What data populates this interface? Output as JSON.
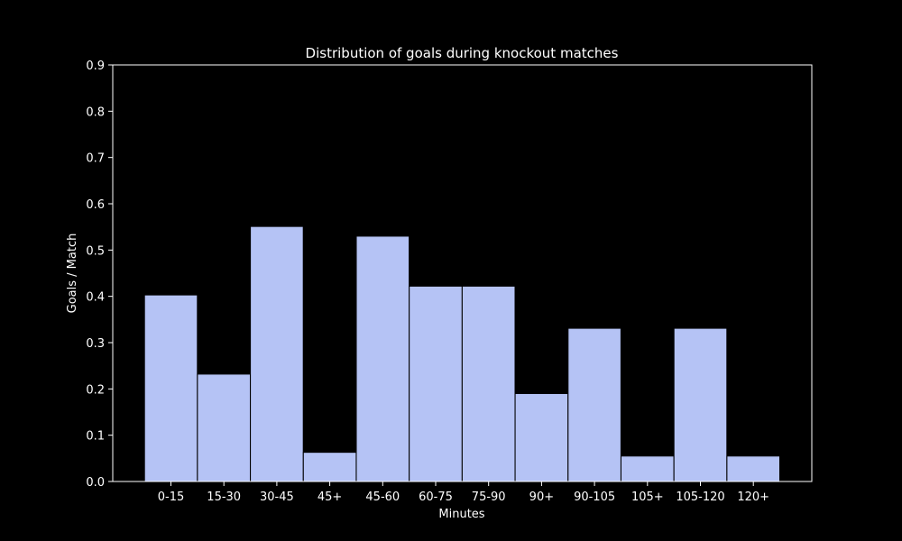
{
  "chart_data": {
    "type": "bar",
    "title": "Distribution of goals during knockout matches",
    "xlabel": "Minutes",
    "ylabel": "Goals / Match",
    "categories": [
      "0-15",
      "15-30",
      "30-45",
      "45+",
      "45-60",
      "60-75",
      "75-90",
      "90+",
      "90-105",
      "105+",
      "105-120",
      "120+"
    ],
    "values": [
      0.403,
      0.232,
      0.551,
      0.063,
      0.53,
      0.422,
      0.422,
      0.19,
      0.331,
      0.055,
      0.331,
      0.055
    ],
    "ylim": [
      0,
      0.9
    ],
    "yticks": [
      "0.0",
      "0.1",
      "0.2",
      "0.3",
      "0.4",
      "0.5",
      "0.6",
      "0.7",
      "0.8",
      "0.9"
    ],
    "grid": false,
    "colors": {
      "background": "#000000",
      "bar_fill": "#b5c3f5",
      "bar_edge": "#000000",
      "axes": "#ffffff",
      "text": "#ffffff"
    }
  }
}
